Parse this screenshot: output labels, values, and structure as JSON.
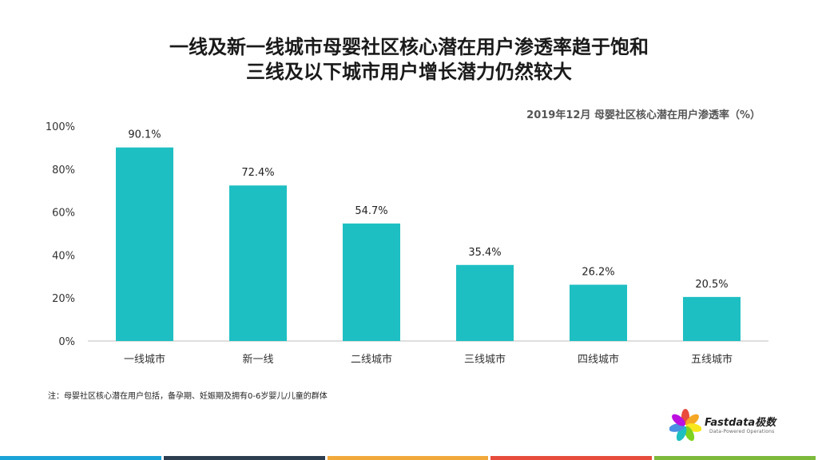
{
  "title_line1": "一线及新一线城市母婴社区核心潜在用户渗透率趋于饱和",
  "title_line2": "三线及以下城市用户增长潜力仍然较大",
  "note": "注：母婴社区核心潜在用户包括，备孕期、妊娠期及拥有0-6岁婴儿/儿童的群体",
  "logo": {
    "name": "Fastdata极数",
    "tagline": "Data-Powered Operations"
  },
  "colors": {
    "bar": "#1EBFC2",
    "axis": "#BFBFBF",
    "strip": [
      "#1AA3D9",
      "#2C3E50",
      "#F2A93B",
      "#E74C3C",
      "#7DBA3B"
    ]
  },
  "chart_data": {
    "type": "bar",
    "title": "2019年12月 母婴社区核心潜在用户渗透率（%）",
    "categories": [
      "一线城市",
      "新一线",
      "二线城市",
      "三线城市",
      "四线城市",
      "五线城市"
    ],
    "values": [
      90.1,
      72.4,
      54.7,
      35.4,
      26.2,
      20.5
    ],
    "value_labels": [
      "90.1%",
      "72.4%",
      "54.7%",
      "35.4%",
      "26.2%",
      "20.5%"
    ],
    "y_ticks": [
      "0%",
      "20%",
      "40%",
      "60%",
      "80%",
      "100%"
    ],
    "ylim": [
      0,
      100
    ],
    "xlabel": "",
    "ylabel": ""
  }
}
